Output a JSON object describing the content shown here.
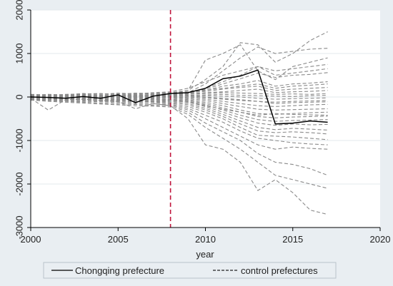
{
  "chart_data": {
    "type": "line",
    "xlabel": "year",
    "ylabel": "",
    "xlim": [
      2000,
      2020
    ],
    "ylim": [
      -3000,
      2000
    ],
    "x_ticks": [
      "2000",
      "2005",
      "2010",
      "2015",
      "2020"
    ],
    "y_ticks": [
      "-3000",
      "-2000",
      "-1000",
      "0",
      "1000",
      "2000"
    ],
    "grid": true,
    "legend_position": "bottom",
    "colors": {
      "background": "#e9eef2",
      "plot_area": "#ffffff",
      "treated": "#000000",
      "controls": "#8a8a8a",
      "intervention": "#c0143c"
    },
    "intervention_year": 2008,
    "legend": [
      {
        "label": "Chongqing prefecture",
        "style": "solid"
      },
      {
        "label": "control prefectures",
        "style": "dashed"
      }
    ],
    "x": [
      2000,
      2001,
      2002,
      2003,
      2004,
      2005,
      2006,
      2007,
      2008,
      2009,
      2010,
      2011,
      2012,
      2013,
      2014,
      2015,
      2016,
      2017
    ],
    "treated_series": {
      "name": "Chongqing prefecture",
      "values": [
        0,
        -10,
        -30,
        10,
        -30,
        50,
        -130,
        20,
        80,
        100,
        200,
        420,
        480,
        620,
        -620,
        -600,
        -550,
        -580
      ]
    },
    "control_series": [
      {
        "values": [
          20,
          30,
          10,
          40,
          20,
          50,
          30,
          60,
          80,
          150,
          400,
          700,
          1250,
          1200,
          800,
          1000,
          1300,
          1500
        ]
      },
      {
        "values": [
          -20,
          0,
          20,
          0,
          10,
          30,
          20,
          40,
          60,
          100,
          300,
          600,
          900,
          1150,
          1000,
          1050,
          1100,
          1120
        ]
      },
      {
        "values": [
          30,
          40,
          50,
          60,
          40,
          70,
          60,
          80,
          100,
          150,
          850,
          1000,
          1200,
          600,
          400,
          700,
          800,
          900
        ]
      },
      {
        "values": [
          10,
          20,
          0,
          30,
          10,
          40,
          20,
          50,
          70,
          90,
          200,
          350,
          500,
          700,
          600,
          650,
          700,
          750
        ]
      },
      {
        "values": [
          -10,
          10,
          20,
          10,
          0,
          20,
          10,
          30,
          50,
          80,
          180,
          300,
          420,
          550,
          450,
          500,
          520,
          560
        ]
      },
      {
        "values": [
          0,
          20,
          30,
          20,
          10,
          40,
          30,
          50,
          60,
          80,
          150,
          250,
          300,
          380,
          250,
          300,
          320,
          350
        ]
      },
      {
        "values": [
          20,
          10,
          30,
          40,
          30,
          50,
          40,
          60,
          80,
          100,
          130,
          180,
          220,
          250,
          150,
          180,
          200,
          220
        ]
      },
      {
        "values": [
          -30,
          -20,
          0,
          -10,
          10,
          0,
          20,
          30,
          50,
          70,
          100,
          120,
          150,
          180,
          100,
          120,
          130,
          150
        ]
      },
      {
        "values": [
          10,
          0,
          -10,
          10,
          0,
          30,
          10,
          20,
          40,
          60,
          80,
          100,
          90,
          80,
          60,
          70,
          60,
          80
        ]
      },
      {
        "values": [
          0,
          -10,
          0,
          20,
          10,
          20,
          0,
          10,
          30,
          40,
          50,
          60,
          40,
          30,
          20,
          10,
          30,
          40
        ]
      },
      {
        "values": [
          -20,
          -30,
          -10,
          0,
          -20,
          10,
          -10,
          0,
          20,
          30,
          30,
          20,
          0,
          -30,
          -50,
          -40,
          -30,
          -20
        ]
      },
      {
        "values": [
          30,
          20,
          10,
          0,
          20,
          10,
          0,
          10,
          10,
          0,
          -20,
          -50,
          -80,
          -100,
          -120,
          -100,
          -90,
          -80
        ]
      },
      {
        "values": [
          -10,
          0,
          -20,
          -10,
          0,
          -10,
          -30,
          -20,
          0,
          -20,
          -50,
          -100,
          -150,
          -200,
          -220,
          -200,
          -180,
          -170
        ]
      },
      {
        "values": [
          0,
          10,
          0,
          -20,
          -10,
          0,
          -20,
          -10,
          -10,
          -40,
          -80,
          -150,
          -220,
          -280,
          -300,
          -290,
          -280,
          -270
        ]
      },
      {
        "values": [
          20,
          0,
          -10,
          -30,
          -20,
          -10,
          -40,
          -30,
          -30,
          -60,
          -120,
          -200,
          -300,
          -380,
          -400,
          -380,
          -360,
          -350
        ]
      },
      {
        "values": [
          -40,
          -30,
          -50,
          -40,
          -30,
          -50,
          -60,
          -40,
          -50,
          -80,
          -150,
          -250,
          -350,
          -450,
          -480,
          -460,
          -450,
          -440
        ]
      },
      {
        "values": [
          10,
          -20,
          -30,
          -20,
          -40,
          -30,
          -50,
          -60,
          -60,
          -100,
          -180,
          -300,
          -420,
          -520,
          -560,
          -540,
          -530,
          -520
        ]
      },
      {
        "values": [
          -20,
          -40,
          -30,
          -50,
          -40,
          -60,
          -70,
          -80,
          -80,
          -120,
          -220,
          -350,
          -480,
          -600,
          -650,
          -620,
          -640,
          -630
        ]
      },
      {
        "values": [
          0,
          -20,
          -40,
          -30,
          -50,
          -70,
          -60,
          -90,
          -100,
          -150,
          -260,
          -400,
          -550,
          -700,
          -750,
          -720,
          -740,
          -760
        ]
      },
      {
        "values": [
          -30,
          -50,
          -40,
          -60,
          -70,
          -80,
          -90,
          -100,
          -120,
          -180,
          -300,
          -450,
          -620,
          -780,
          -820,
          -800,
          -820,
          -850
        ]
      },
      {
        "values": [
          -10,
          -30,
          -50,
          -60,
          -80,
          -90,
          -100,
          -110,
          -140,
          -220,
          -350,
          -500,
          -700,
          -880,
          -900,
          -920,
          -950,
          -980
        ]
      },
      {
        "values": [
          -40,
          -60,
          -70,
          -80,
          -90,
          -110,
          -120,
          -130,
          -160,
          -260,
          -420,
          -580,
          -780,
          -950,
          -1000,
          -1050,
          -1080,
          -1100
        ]
      },
      {
        "values": [
          -50,
          -70,
          -90,
          -100,
          -110,
          -130,
          -150,
          -160,
          -180,
          -300,
          -500,
          -700,
          -900,
          -1100,
          -1200,
          -1150,
          -1180,
          -1200
        ]
      },
      {
        "values": [
          -60,
          -80,
          -100,
          -120,
          -140,
          -160,
          -170,
          -190,
          -200,
          -350,
          -600,
          -800,
          -1000,
          -1300,
          -1500,
          -1550,
          -1650,
          -1800
        ]
      },
      {
        "values": [
          -70,
          -100,
          -120,
          -140,
          -160,
          -180,
          -200,
          -210,
          -230,
          -400,
          -700,
          -950,
          -1200,
          -1500,
          -1800,
          -1900,
          -2000,
          -2100
        ]
      },
      {
        "values": [
          -30,
          -300,
          -60,
          -50,
          -80,
          -100,
          -270,
          -150,
          -200,
          -500,
          -1100,
          -1200,
          -1500,
          -2150,
          -1900,
          -2200,
          -2600,
          -2700
        ]
      },
      {
        "values": [
          40,
          60,
          50,
          80,
          60,
          90,
          70,
          100,
          120,
          200,
          350,
          500,
          600,
          700,
          500,
          550,
          600,
          650
        ]
      },
      {
        "values": [
          50,
          40,
          60,
          70,
          80,
          60,
          90,
          80,
          100,
          120,
          160,
          200,
          250,
          300,
          200,
          250,
          270,
          300
        ]
      },
      {
        "values": [
          -50,
          -40,
          -60,
          -30,
          -50,
          -40,
          -70,
          -50,
          -80,
          -120,
          -200,
          -280,
          -350,
          -420,
          -380,
          -400,
          -410,
          -420
        ]
      },
      {
        "values": [
          60,
          50,
          40,
          50,
          30,
          40,
          50,
          40,
          30,
          20,
          0,
          -30,
          -60,
          -100,
          -150,
          -130,
          -120,
          -110
        ]
      }
    ]
  }
}
